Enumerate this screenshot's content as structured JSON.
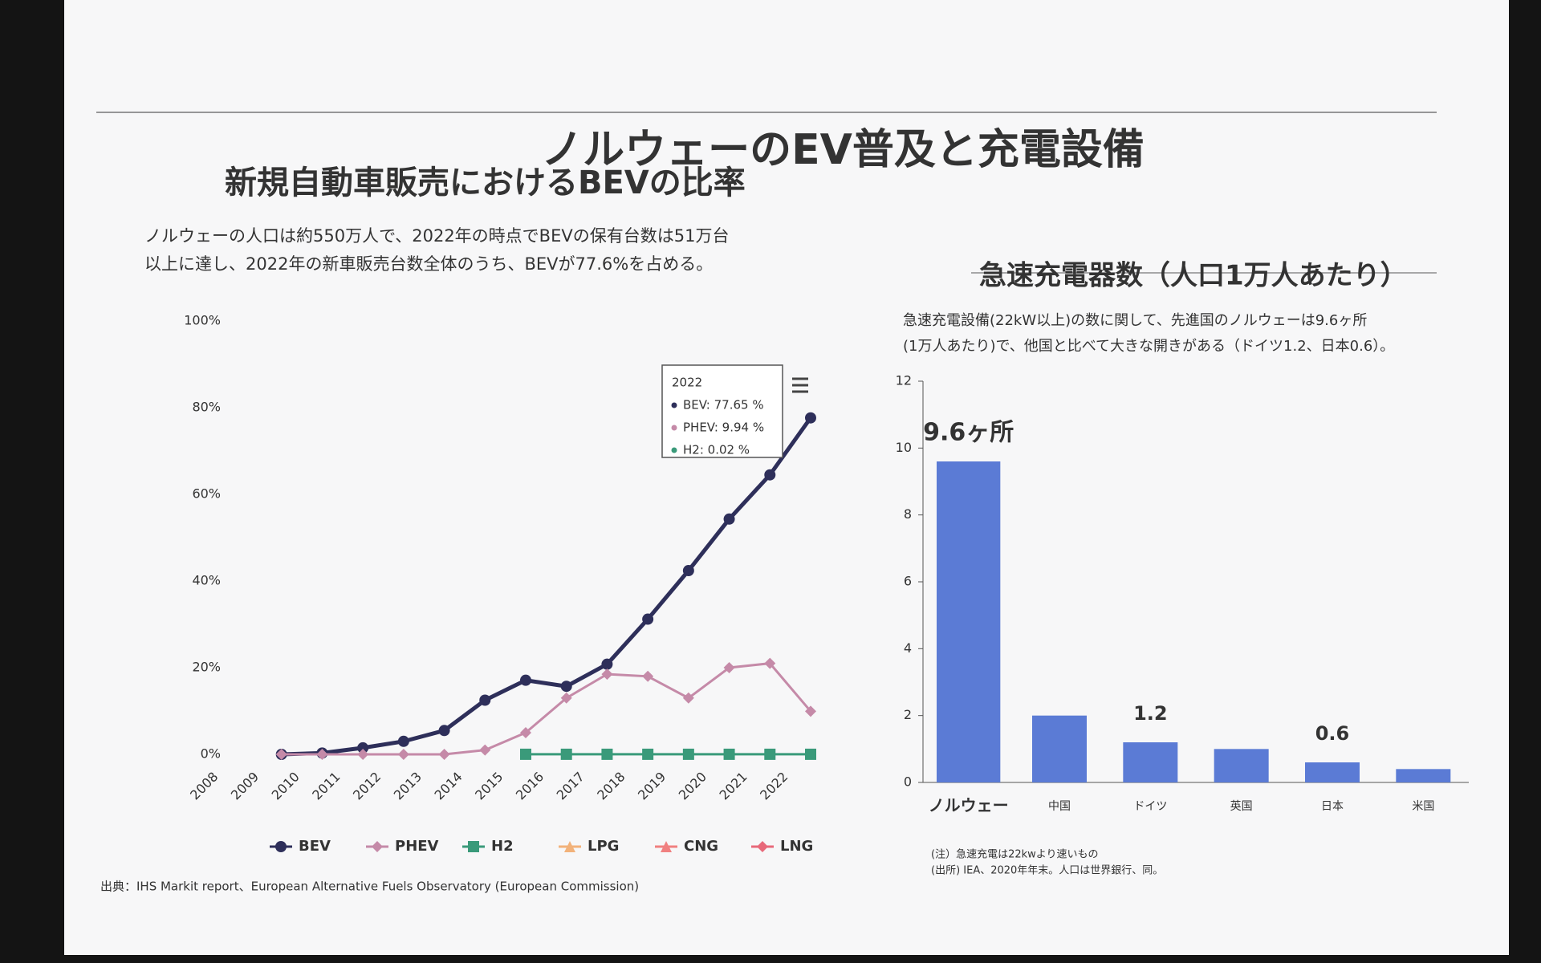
{
  "title": "ノルウェーのEV普及と充電設備",
  "source": "出典：IHS Markit report、European Alternative Fuels Observatory (European Commission)",
  "chart_data": [
    {
      "type": "line",
      "title": "新規自動車販売におけるBEVの比率",
      "description": [
        "ノルウェーの人口は約550万人で、2022年の時点でBEVの保有台数は51万台",
        "以上に達し、2022年の新車販売台数全体のうち、BEVが77.6%を占める。"
      ],
      "categories": [
        "2008",
        "2009",
        "2010",
        "2011",
        "2012",
        "2013",
        "2014",
        "2015",
        "2016",
        "2017",
        "2018",
        "2019",
        "2020",
        "2021",
        "2022"
      ],
      "series": [
        {
          "name": "BEV",
          "color": "#2e2f5a",
          "marker": "circle",
          "values": [
            null,
            0,
            0.3,
            1.5,
            3,
            5.5,
            12.5,
            17.1,
            15.7,
            20.8,
            31.2,
            42.4,
            54.3,
            64.5,
            77.65
          ]
        },
        {
          "name": "PHEV",
          "color": "#c58aa8",
          "marker": "diamond",
          "values": [
            null,
            0,
            0,
            0,
            0,
            0,
            1,
            5,
            13,
            18.5,
            18,
            13,
            20,
            21,
            9.94
          ]
        },
        {
          "name": "H2",
          "color": "#3a9a7a",
          "marker": "square",
          "values": [
            null,
            null,
            null,
            null,
            null,
            null,
            null,
            0.02,
            0.02,
            0.02,
            0.02,
            0.02,
            0.02,
            0.02,
            0.02
          ]
        },
        {
          "name": "LPG",
          "color": "#f2b27a",
          "marker": "triangle",
          "values": [
            null,
            null,
            null,
            null,
            null,
            null,
            null,
            null,
            null,
            null,
            null,
            null,
            null,
            null,
            null
          ]
        },
        {
          "name": "CNG",
          "color": "#f08080",
          "marker": "triangle",
          "values": [
            null,
            null,
            null,
            null,
            null,
            null,
            null,
            null,
            null,
            null,
            null,
            null,
            null,
            null,
            null
          ]
        },
        {
          "name": "LNG",
          "color": "#e8697a",
          "marker": "diamond",
          "values": [
            null,
            null,
            null,
            null,
            null,
            null,
            null,
            null,
            null,
            null,
            null,
            null,
            null,
            null,
            null
          ]
        }
      ],
      "ylim": [
        0,
        100
      ],
      "yticks": [
        {
          "value": 0,
          "label": "0%"
        },
        {
          "value": 20,
          "label": "20%"
        },
        {
          "value": 40,
          "label": "40%"
        },
        {
          "value": 60,
          "label": "60%"
        },
        {
          "value": 80,
          "label": "80%"
        },
        {
          "value": 100,
          "label": "100%"
        }
      ],
      "grid": false,
      "legend": "bottom",
      "tooltip": {
        "title": "2022",
        "items": [
          "BEV: 77.65 %",
          "PHEV: 9.94 %",
          "H2: 0.02 %"
        ]
      }
    },
    {
      "type": "bar",
      "title": "急速充電器数（人口1万人あたり）",
      "description": [
        "急速充電設備(22kW以上)の数に関して、先進国のノルウェーは9.6ヶ所",
        "(1万人あたり)で、他国と比べて大きな開きがある（ドイツ1.2、日本0.6）。"
      ],
      "categories": [
        "ノルウェー",
        "中国",
        "ドイツ",
        "英国",
        "日本",
        "米国"
      ],
      "values": [
        9.6,
        2.0,
        1.2,
        1.0,
        0.6,
        0.4
      ],
      "value_labels": [
        "9.6ヶ所",
        null,
        "1.2",
        null,
        "0.6",
        null
      ],
      "color": "#5b7bd5",
      "ylim": [
        0,
        12
      ],
      "yticks": [
        0,
        2,
        4,
        6,
        8,
        10,
        12
      ],
      "grid": false,
      "notes": [
        "(注）急速充電は22kwより速いもの",
        "(出所) IEA、2020年年末。人口は世界銀行、同。"
      ]
    }
  ]
}
